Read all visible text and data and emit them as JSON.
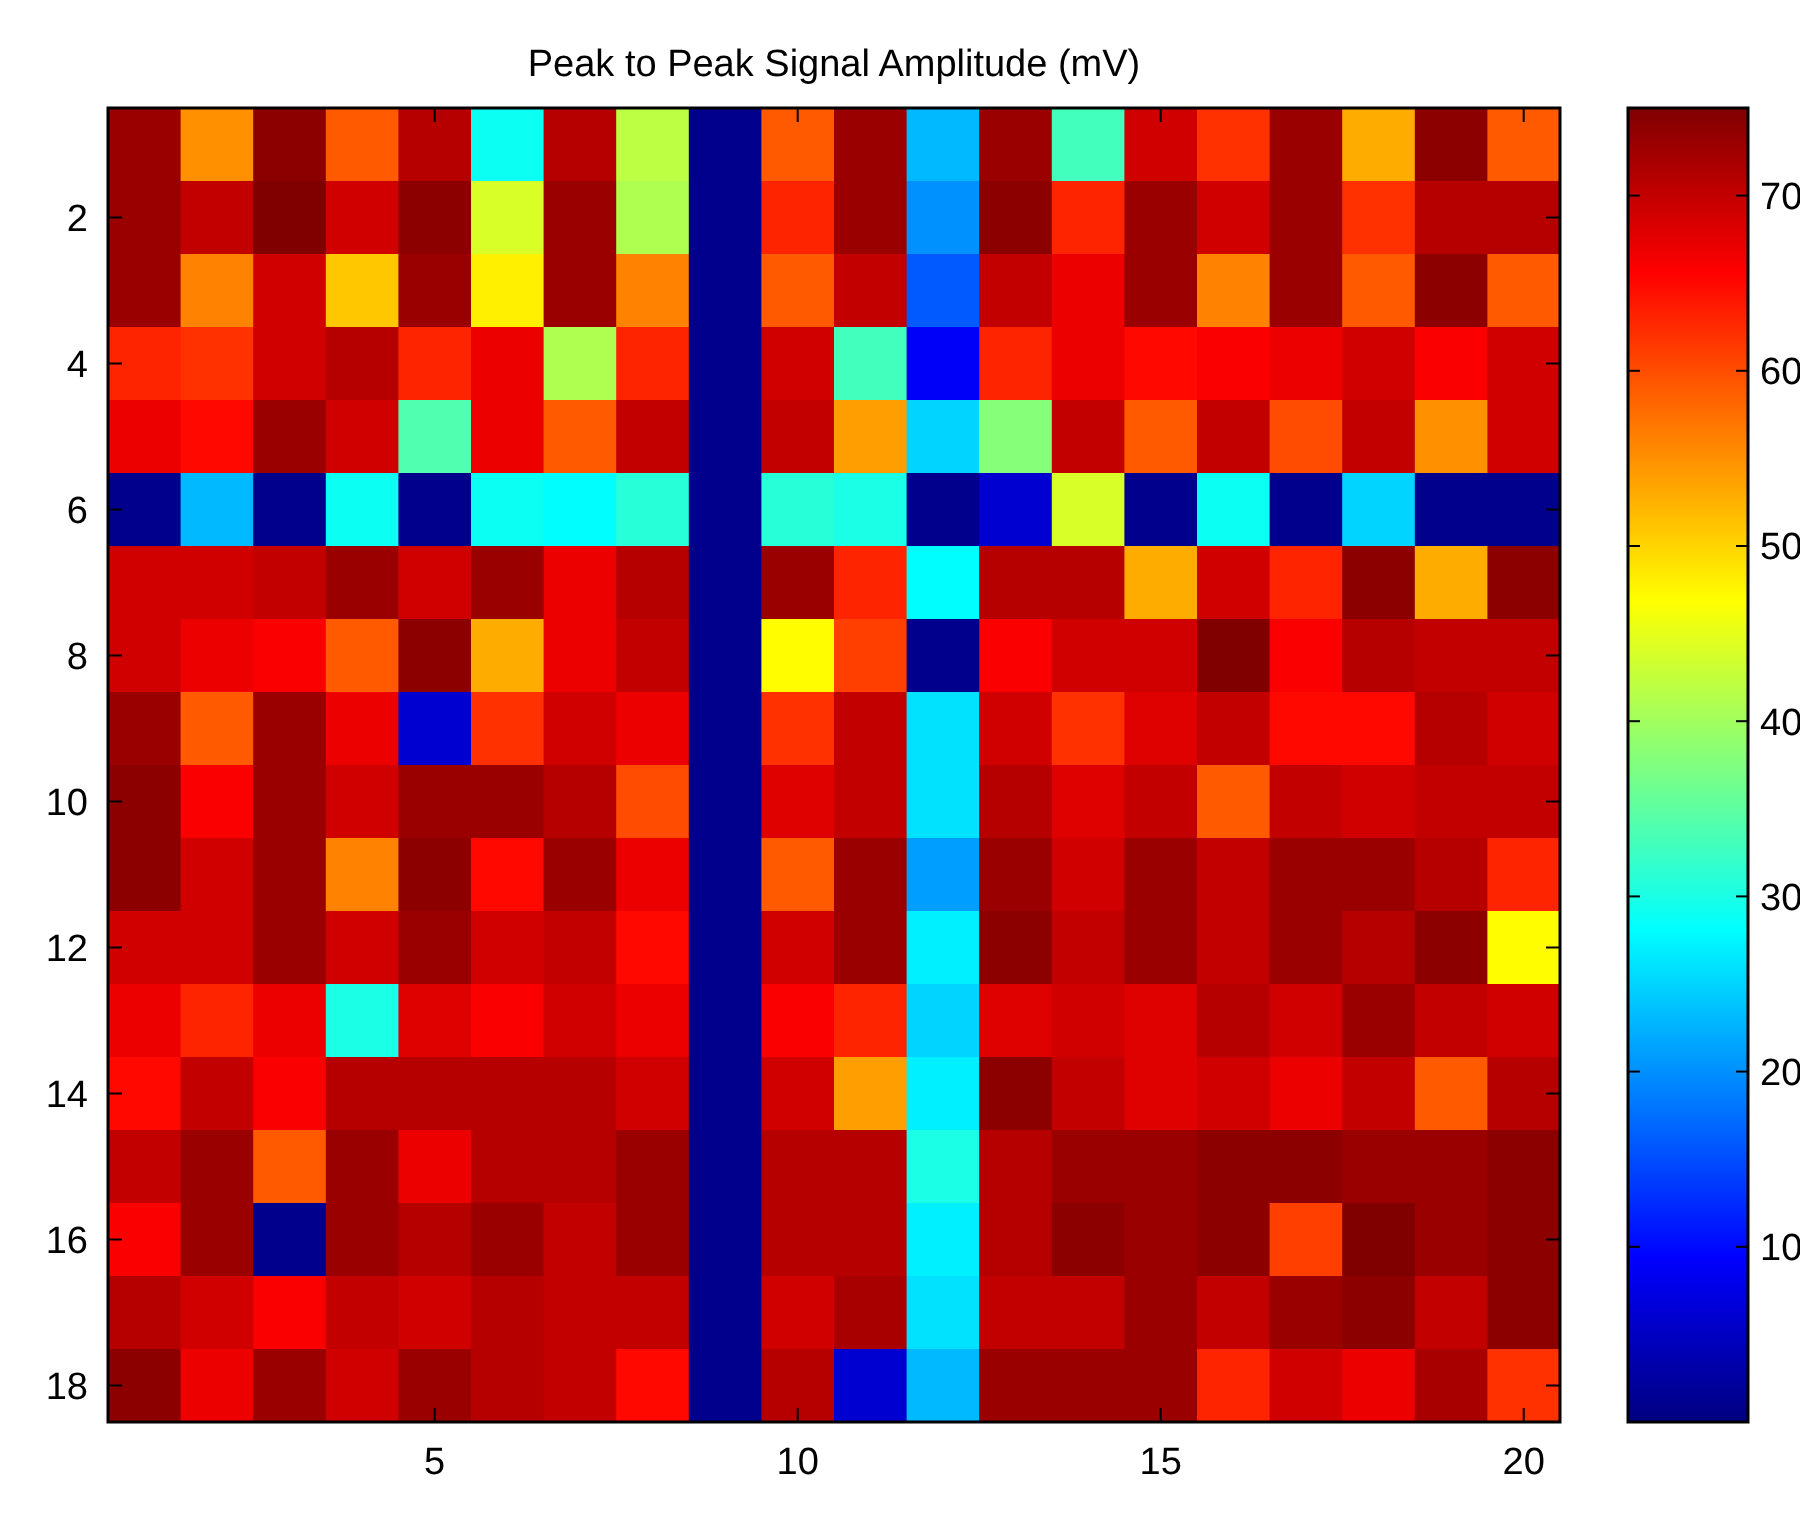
{
  "chart_data": {
    "type": "heatmap",
    "title": "Peak to Peak Signal Amplitude (mV)",
    "categories": [
      null,
      null,
      null,
      null,
      "5",
      null,
      null,
      null,
      null,
      "10",
      null,
      null,
      null,
      null,
      "15",
      null,
      null,
      null,
      null,
      "20"
    ],
    "y_categories": [
      null,
      "2",
      null,
      "4",
      null,
      "6",
      null,
      "8",
      null,
      "10",
      null,
      "12",
      null,
      "14",
      null,
      "16",
      null,
      "18"
    ],
    "cells": [
      [
        73,
        55,
        74,
        59,
        71,
        29,
        71,
        42,
        1,
        59,
        73,
        23,
        73,
        33,
        69,
        62,
        73,
        53,
        74,
        59
      ],
      [
        73,
        70,
        75,
        69,
        74,
        44,
        73,
        41,
        1,
        63,
        73,
        20,
        74,
        63,
        73,
        69,
        73,
        62,
        71,
        71
      ],
      [
        73,
        56,
        69,
        51,
        73,
        48,
        73,
        56,
        1,
        59,
        70,
        16,
        70,
        67,
        73,
        56,
        73,
        59,
        74,
        59
      ],
      [
        63,
        62,
        69,
        71,
        63,
        67,
        41,
        63,
        1,
        69,
        33,
        9,
        63,
        67,
        65,
        66,
        67,
        69,
        66,
        69
      ],
      [
        67,
        65,
        73,
        69,
        34,
        67,
        59,
        70,
        1,
        70,
        54,
        25,
        38,
        70,
        59,
        70,
        60,
        70,
        55,
        69
      ],
      [
        1,
        23,
        1,
        29,
        1,
        29,
        28,
        31,
        1,
        31,
        30,
        1,
        6,
        44,
        1,
        29,
        1,
        25,
        1,
        1
      ],
      [
        69,
        69,
        70,
        73,
        69,
        73,
        67,
        71,
        1,
        73,
        63,
        28,
        71,
        71,
        53,
        69,
        63,
        74,
        53,
        74
      ],
      [
        69,
        67,
        66,
        59,
        74,
        53,
        67,
        70,
        1,
        47,
        61,
        1,
        66,
        69,
        69,
        75,
        66,
        71,
        70,
        70
      ],
      [
        73,
        59,
        73,
        67,
        6,
        62,
        69,
        67,
        1,
        62,
        70,
        26,
        69,
        62,
        68,
        70,
        65,
        65,
        71,
        69
      ],
      [
        74,
        66,
        73,
        69,
        73,
        73,
        71,
        60,
        1,
        68,
        70,
        26,
        71,
        68,
        70,
        59,
        70,
        69,
        70,
        70
      ],
      [
        74,
        69,
        73,
        56,
        74,
        65,
        73,
        67,
        1,
        59,
        73,
        21,
        73,
        69,
        73,
        70,
        73,
        73,
        71,
        63
      ],
      [
        69,
        69,
        73,
        69,
        73,
        69,
        70,
        65,
        1,
        69,
        73,
        27,
        74,
        70,
        73,
        70,
        73,
        71,
        74,
        47
      ],
      [
        67,
        63,
        67,
        30,
        68,
        66,
        69,
        67,
        1,
        66,
        63,
        25,
        68,
        69,
        68,
        71,
        69,
        73,
        70,
        69
      ],
      [
        65,
        70,
        66,
        71,
        71,
        71,
        71,
        69,
        1,
        69,
        54,
        27,
        74,
        70,
        68,
        69,
        67,
        70,
        59,
        71
      ],
      [
        70,
        73,
        59,
        73,
        67,
        71,
        71,
        73,
        1,
        71,
        71,
        30,
        71,
        73,
        73,
        74,
        74,
        73,
        73,
        74
      ],
      [
        66,
        73,
        1,
        73,
        71,
        73,
        70,
        73,
        1,
        71,
        71,
        27,
        71,
        74,
        73,
        74,
        61,
        75,
        73,
        74
      ],
      [
        71,
        69,
        66,
        70,
        69,
        71,
        70,
        70,
        1,
        69,
        72,
        26,
        70,
        70,
        73,
        70,
        73,
        74,
        70,
        74
      ],
      [
        74,
        67,
        73,
        69,
        73,
        71,
        70,
        65,
        1,
        71,
        6,
        23,
        73,
        73,
        73,
        63,
        69,
        67,
        72,
        62
      ]
    ],
    "clim": [
      0,
      75
    ],
    "cticks": [
      10,
      20,
      30,
      40,
      50,
      60,
      70
    ]
  }
}
